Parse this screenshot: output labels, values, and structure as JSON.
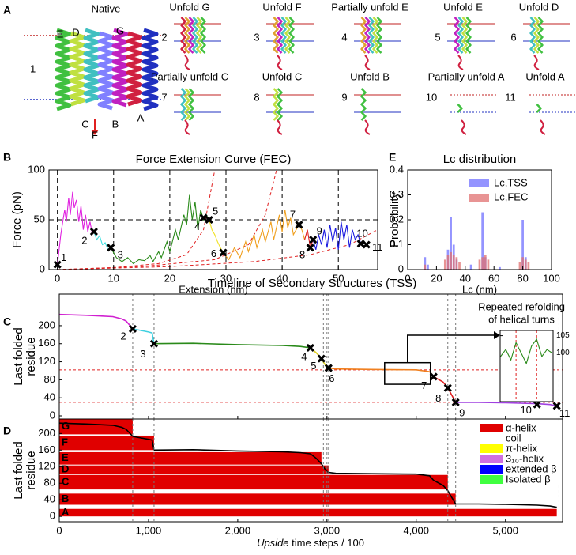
{
  "panel_labels": [
    "A",
    "B",
    "C",
    "D",
    "E"
  ],
  "panel_a": {
    "native_title": "Native",
    "number": "1",
    "helix_labels": [
      "E",
      "D",
      "G",
      "C",
      "B",
      "F",
      "A"
    ],
    "snapshots": [
      {
        "title": "Unfold G",
        "number": "2"
      },
      {
        "title": "Unfold F",
        "number": "3"
      },
      {
        "title": "Partially unfold E",
        "number": "4"
      },
      {
        "title": "Unfold E",
        "number": "5"
      },
      {
        "title": "Unfold D",
        "number": "6"
      },
      {
        "title": "Partially unfold C",
        "number": "7"
      },
      {
        "title": "Unfold C",
        "number": "8"
      },
      {
        "title": "Unfold B",
        "number": "9"
      },
      {
        "title": "Partially unfold A",
        "number": "10"
      },
      {
        "title": "Unfold A",
        "number": "11"
      }
    ]
  },
  "chart_data": [
    {
      "type": "line",
      "title": "Force Extension Curve (FEC)",
      "xlabel": "Extension (nm)",
      "ylabel": "Force (pN)",
      "xlim": [
        -1.5,
        57
      ],
      "ylim": [
        0,
        100
      ],
      "xticks": [
        0,
        10,
        20,
        30,
        40,
        50
      ],
      "yticks": [
        0,
        50,
        100
      ],
      "grid": true,
      "hlines": [
        50
      ],
      "series": [
        {
          "color": "#e020e0",
          "x": [
            0,
            0.3,
            0.6,
            1,
            1.3,
            1.6,
            2,
            2.3,
            2.7,
            3,
            3.4,
            3.8,
            4.2,
            4.6,
            5,
            5.4,
            5.8,
            6.2,
            6.5
          ],
          "values": [
            5,
            20,
            35,
            50,
            60,
            48,
            72,
            55,
            78,
            62,
            70,
            48,
            64,
            40,
            55,
            38,
            48,
            36,
            38
          ]
        },
        {
          "color": "#40e0e0",
          "x": [
            6.5,
            7,
            7.5,
            8,
            8.5,
            9,
            9.5
          ],
          "values": [
            38,
            30,
            34,
            25,
            27,
            20,
            22
          ]
        },
        {
          "color": "#2a8a1a",
          "x": [
            9.5,
            10.5,
            11.5,
            12.5,
            13.5,
            14.5,
            15.5,
            16.5,
            17,
            18,
            18.5,
            19.5,
            20,
            21,
            21.5,
            22.5,
            23,
            23.5,
            24,
            24.5,
            25,
            25.5,
            26,
            26.5,
            27
          ],
          "values": [
            22,
            12,
            8,
            12,
            6,
            10,
            9,
            14,
            8,
            18,
            12,
            28,
            18,
            40,
            30,
            55,
            45,
            75,
            50,
            68,
            40,
            60,
            50,
            55,
            50
          ]
        },
        {
          "color": "#f0e020",
          "x": [
            27,
            27.5,
            28,
            28.5,
            29,
            29.5
          ],
          "values": [
            50,
            40,
            35,
            28,
            22,
            17
          ]
        },
        {
          "color": "#f0a020",
          "x": [
            29.5,
            30.5,
            31.5,
            32.5,
            33.5,
            34,
            35,
            35.5,
            36.5,
            37,
            38,
            38.5,
            39.5,
            40,
            40.5,
            41,
            41.5,
            42,
            43,
            43.5,
            44
          ],
          "values": [
            17,
            10,
            22,
            12,
            28,
            18,
            35,
            22,
            40,
            28,
            48,
            30,
            55,
            38,
            60,
            42,
            52,
            35,
            45,
            40,
            30
          ]
        },
        {
          "color": "#e02020",
          "x": [
            44,
            44.5,
            45,
            45.5
          ],
          "values": [
            30,
            40,
            22,
            30
          ]
        },
        {
          "color": "#1a1ae0",
          "x": [
            45.5,
            46,
            46.5,
            47,
            47.5,
            48,
            48.5,
            49,
            49.5,
            50,
            50.5,
            51,
            51.5,
            52,
            52.5,
            53,
            53.5,
            54,
            54.5,
            55
          ],
          "values": [
            30,
            20,
            35,
            25,
            40,
            22,
            45,
            28,
            42,
            20,
            48,
            30,
            45,
            22,
            40,
            30,
            35,
            26,
            28,
            25
          ]
        }
      ],
      "fits": [
        {
          "color": "#e02020",
          "x": [
            0,
            10,
            18,
            23,
            26,
            28
          ],
          "values": [
            0,
            2,
            6,
            15,
            40,
            100
          ]
        },
        {
          "color": "#e02020",
          "x": [
            0,
            15,
            28,
            34,
            37,
            39
          ],
          "values": [
            0,
            3,
            10,
            25,
            55,
            100
          ]
        },
        {
          "color": "#e02020",
          "x": [
            0,
            20,
            35,
            45,
            52,
            57
          ],
          "values": [
            0,
            3,
            8,
            15,
            25,
            40
          ]
        }
      ],
      "markers": {
        "x": [
          0,
          6.5,
          9.5,
          26,
          27,
          29.5,
          43,
          45,
          45.5,
          54,
          55
        ],
        "values": [
          5,
          38,
          22,
          52,
          50,
          17,
          45,
          22,
          30,
          26,
          25
        ],
        "labels": [
          "1",
          "2",
          "3",
          "4",
          "5",
          "6",
          "7",
          "8",
          "9",
          "10",
          "11"
        ]
      }
    },
    {
      "type": "bar",
      "title": "Lc distribution",
      "xlabel": "Lc (nm)",
      "ylabel": "Probability",
      "xlim": [
        0,
        100
      ],
      "ylim": [
        0,
        0.4
      ],
      "xticks": [
        0,
        20,
        40,
        60,
        80,
        100
      ],
      "yticks": [
        0,
        0.1,
        0.2,
        0.3,
        0.4
      ],
      "legend": "upper right",
      "series": [
        {
          "name": "Lc,TSS",
          "color": "#7070ff",
          "x": [
            12,
            14,
            28,
            30,
            32,
            34,
            44,
            52,
            54,
            64,
            80,
            82
          ],
          "values": [
            0.05,
            0.02,
            0.08,
            0.21,
            0.1,
            0.04,
            0.02,
            0.23,
            0.05,
            0.01,
            0.2,
            0.05
          ]
        },
        {
          "name": "Lc,FEC",
          "color": "#e07070",
          "x": [
            12,
            26,
            28,
            30,
            32,
            34,
            36,
            50,
            52,
            54,
            56,
            78,
            80,
            82,
            84
          ],
          "values": [
            0.02,
            0.04,
            0.06,
            0.07,
            0.06,
            0.05,
            0.03,
            0.04,
            0.05,
            0.06,
            0.04,
            0.03,
            0.05,
            0.04,
            0.03
          ]
        }
      ]
    },
    {
      "type": "line",
      "title": "Timeline of Secondary Structures (TSS)",
      "ylabel": [
        "Last folded",
        "residue"
      ],
      "xlim": [
        0,
        5640
      ],
      "ylim": [
        -7,
        270
      ],
      "yticks": [
        0,
        40,
        80,
        120,
        160,
        200
      ],
      "series": [
        {
          "color": "#d020d0",
          "x": [
            0,
            300,
            600,
            700,
            750,
            823
          ],
          "values": [
            225,
            223,
            220,
            215,
            210,
            193
          ]
        },
        {
          "color": "#40d0e0",
          "x": [
            823,
            900,
            1000,
            1040,
            1062
          ],
          "values": [
            193,
            190,
            186,
            184,
            160
          ]
        },
        {
          "color": "#2a8a1a",
          "x": [
            1062,
            1500,
            2000,
            2500,
            2700,
            2814
          ],
          "values": [
            160,
            161,
            158,
            156,
            154,
            151
          ]
        },
        {
          "color": "#e0d020",
          "x": [
            2814,
            2880,
            2938,
            2990,
            3018
          ],
          "values": [
            151,
            140,
            127,
            110,
            106
          ]
        },
        {
          "color": "#f08020",
          "x": [
            3018,
            3100,
            3500,
            4000,
            4150,
            4195
          ],
          "values": [
            106,
            104,
            103,
            102,
            98,
            87
          ]
        },
        {
          "color": "#e02020",
          "x": [
            4195,
            4300,
            4354,
            4400,
            4442
          ],
          "values": [
            87,
            75,
            62,
            45,
            30
          ]
        },
        {
          "color": "#a040e0",
          "x": [
            4442,
            4700,
            5000,
            5354,
            5500,
            5575
          ],
          "values": [
            30,
            30,
            29,
            27,
            25,
            22
          ]
        }
      ],
      "markers": {
        "x": [
          823,
          1062,
          2814,
          2938,
          3018,
          4195,
          4354,
          4442,
          5354,
          5575
        ],
        "values": [
          193,
          160,
          151,
          127,
          106,
          87,
          62,
          30,
          25,
          22
        ],
        "labels": [
          "2",
          "3",
          "4",
          "5",
          "6",
          "7",
          "8",
          "9",
          "10",
          "11"
        ]
      },
      "hlines": [
        157,
        102,
        30
      ],
      "vlines": [
        823,
        1062,
        2960,
        3000,
        3018,
        4354,
        4442,
        5600
      ],
      "zoom_box": {
        "x": [
          3646,
          4159
        ],
        "y": [
          70,
          118
        ]
      }
    },
    {
      "type": "line",
      "title": [
        "Repeated  refolding",
        "of helical turns"
      ],
      "xlim": [
        3646,
        4159
      ],
      "ylim": [
        86,
        106.5
      ],
      "yticks": [
        100,
        105
      ],
      "vlines": [
        3800,
        4000
      ],
      "series": [
        {
          "color": "#2a8a1a",
          "x": [
            3650,
            3700,
            3750,
            3800,
            3850,
            3900,
            3950,
            4000,
            4050,
            4100,
            4150
          ],
          "values": [
            99,
            101,
            98,
            103,
            100,
            97,
            102,
            104,
            99,
            101,
            100
          ]
        }
      ]
    },
    {
      "type": "heatmap",
      "xlabel_italic": "Upside",
      "xlabel": "time steps / 100",
      "ylabel": [
        "Last folded",
        "residue"
      ],
      "xlim": [
        0,
        5640
      ],
      "ylim": [
        -13,
        235
      ],
      "xticks": [
        0,
        {
          "value": 1000,
          "label": "1,000"
        },
        {
          "value": 2000,
          "label": "2,000"
        },
        {
          "value": 3000,
          "label": "3,000"
        },
        {
          "value": 4000,
          "label": "4,000"
        },
        {
          "value": 5000,
          "label": "5,000"
        }
      ],
      "yticks": [
        0,
        40,
        80,
        120,
        160,
        200
      ],
      "color": "#e00000",
      "helices": [
        {
          "name": "A",
          "start": 0,
          "end": 18,
          "unfold": 5575
        },
        {
          "name": "B",
          "start": 28,
          "end": 55,
          "unfold": 4442
        },
        {
          "name": "C",
          "start": 65,
          "end": 100,
          "unfold": 4354
        },
        {
          "name": "D",
          "start": 103,
          "end": 123,
          "unfold": 3018
        },
        {
          "name": "E",
          "start": 125,
          "end": 155,
          "unfold": 2938
        },
        {
          "name": "F",
          "start": 160,
          "end": 195,
          "unfold": 1062
        },
        {
          "name": "G",
          "start": 198,
          "end": 235,
          "unfold": 823
        }
      ],
      "legend_entries": [
        {
          "name": "α-helix",
          "color": "#e00000"
        },
        {
          "name": "coil",
          "color": "#ffffff"
        },
        {
          "name": "π-helix",
          "color": "#ffff00"
        },
        {
          "name": "3₁₀-helix",
          "color": "#d070e0"
        },
        {
          "name": "extended  β",
          "color": "#0000ff"
        },
        {
          "name": "Isolated  β",
          "color": "#40ff40"
        }
      ]
    }
  ]
}
